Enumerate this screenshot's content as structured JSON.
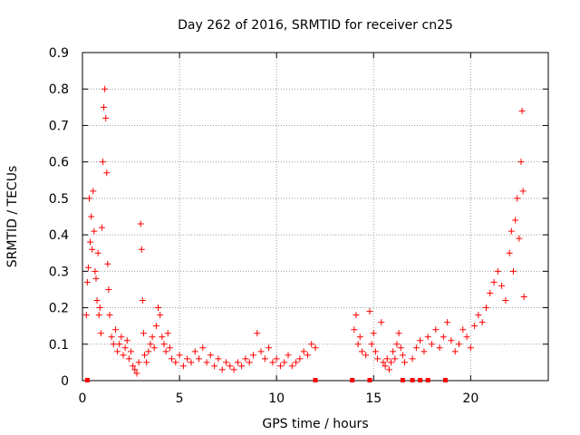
{
  "chart_data": {
    "type": "scatter",
    "title": "Day 262 of 2016, SRMTID for receiver cn25",
    "xlabel": "GPS time / hours",
    "ylabel": "SRMTID / TECUs",
    "xlim": [
      0,
      24
    ],
    "ylim": [
      0,
      0.9
    ],
    "xticks": [
      "0",
      "5",
      "10",
      "15",
      "20"
    ],
    "xtick_values": [
      0,
      5,
      10,
      15,
      20
    ],
    "yticks": [
      "0",
      "0.1",
      "0.2",
      "0.3",
      "0.4",
      "0.5",
      "0.6",
      "0.7",
      "0.8",
      "0.9"
    ],
    "ytick_values": [
      0,
      0.1,
      0.2,
      0.3,
      0.4,
      0.5,
      0.6,
      0.7,
      0.8,
      0.9
    ],
    "grid": true,
    "legend": "none",
    "marker": "+",
    "color": "#ff0000",
    "series": [
      {
        "values": [
          [
            0.2,
            0.18
          ],
          [
            0.25,
            0.27
          ],
          [
            0.3,
            0.31
          ],
          [
            0.35,
            0.5
          ],
          [
            0.4,
            0.38
          ],
          [
            0.45,
            0.45
          ],
          [
            0.5,
            0.36
          ],
          [
            0.55,
            0.52
          ],
          [
            0.6,
            0.41
          ],
          [
            0.65,
            0.3
          ],
          [
            0.7,
            0.28
          ],
          [
            0.75,
            0.22
          ],
          [
            0.8,
            0.35
          ],
          [
            0.85,
            0.18
          ],
          [
            0.9,
            0.2
          ],
          [
            0.95,
            0.13
          ],
          [
            1.0,
            0.42
          ],
          [
            1.05,
            0.6
          ],
          [
            1.1,
            0.75
          ],
          [
            1.15,
            0.8
          ],
          [
            1.2,
            0.72
          ],
          [
            1.25,
            0.57
          ],
          [
            1.3,
            0.32
          ],
          [
            1.35,
            0.25
          ],
          [
            1.4,
            0.18
          ],
          [
            1.5,
            0.12
          ],
          [
            1.6,
            0.1
          ],
          [
            1.7,
            0.14
          ],
          [
            1.8,
            0.08
          ],
          [
            1.9,
            0.1
          ],
          [
            2.0,
            0.12
          ],
          [
            2.1,
            0.07
          ],
          [
            2.2,
            0.09
          ],
          [
            2.3,
            0.11
          ],
          [
            2.4,
            0.06
          ],
          [
            2.5,
            0.08
          ],
          [
            2.6,
            0.04
          ],
          [
            2.7,
            0.03
          ],
          [
            2.8,
            0.02
          ],
          [
            2.9,
            0.05
          ],
          [
            3.0,
            0.43
          ],
          [
            3.05,
            0.36
          ],
          [
            3.1,
            0.22
          ],
          [
            3.15,
            0.13
          ],
          [
            3.2,
            0.07
          ],
          [
            3.3,
            0.05
          ],
          [
            3.4,
            0.08
          ],
          [
            3.5,
            0.1
          ],
          [
            3.6,
            0.12
          ],
          [
            3.7,
            0.09
          ],
          [
            3.8,
            0.15
          ],
          [
            3.9,
            0.2
          ],
          [
            4.0,
            0.18
          ],
          [
            4.1,
            0.12
          ],
          [
            4.2,
            0.1
          ],
          [
            4.3,
            0.08
          ],
          [
            4.4,
            0.13
          ],
          [
            4.5,
            0.09
          ],
          [
            4.6,
            0.06
          ],
          [
            4.8,
            0.05
          ],
          [
            5.0,
            0.07
          ],
          [
            5.2,
            0.04
          ],
          [
            5.4,
            0.06
          ],
          [
            5.6,
            0.05
          ],
          [
            5.8,
            0.08
          ],
          [
            6.0,
            0.06
          ],
          [
            6.2,
            0.09
          ],
          [
            6.4,
            0.05
          ],
          [
            6.6,
            0.07
          ],
          [
            6.8,
            0.04
          ],
          [
            7.0,
            0.06
          ],
          [
            7.2,
            0.03
          ],
          [
            7.4,
            0.05
          ],
          [
            7.6,
            0.04
          ],
          [
            7.8,
            0.03
          ],
          [
            8.0,
            0.05
          ],
          [
            8.2,
            0.04
          ],
          [
            8.4,
            0.06
          ],
          [
            8.6,
            0.05
          ],
          [
            8.8,
            0.07
          ],
          [
            9.0,
            0.13
          ],
          [
            9.2,
            0.08
          ],
          [
            9.4,
            0.06
          ],
          [
            9.6,
            0.09
          ],
          [
            9.8,
            0.05
          ],
          [
            10.0,
            0.06
          ],
          [
            10.2,
            0.04
          ],
          [
            10.4,
            0.05
          ],
          [
            10.6,
            0.07
          ],
          [
            10.8,
            0.04
          ],
          [
            11.0,
            0.05
          ],
          [
            11.2,
            0.06
          ],
          [
            11.4,
            0.08
          ],
          [
            11.6,
            0.07
          ],
          [
            11.8,
            0.1
          ],
          [
            12.0,
            0.09
          ],
          [
            14.0,
            0.14
          ],
          [
            14.1,
            0.18
          ],
          [
            14.2,
            0.1
          ],
          [
            14.3,
            0.12
          ],
          [
            14.4,
            0.08
          ],
          [
            14.6,
            0.07
          ],
          [
            14.8,
            0.19
          ],
          [
            14.9,
            0.1
          ],
          [
            15.0,
            0.13
          ],
          [
            15.1,
            0.08
          ],
          [
            15.2,
            0.06
          ],
          [
            15.4,
            0.16
          ],
          [
            15.5,
            0.05
          ],
          [
            15.6,
            0.04
          ],
          [
            15.7,
            0.06
          ],
          [
            15.8,
            0.03
          ],
          [
            15.9,
            0.05
          ],
          [
            16.0,
            0.08
          ],
          [
            16.1,
            0.06
          ],
          [
            16.2,
            0.1
          ],
          [
            16.3,
            0.13
          ],
          [
            16.4,
            0.09
          ],
          [
            16.5,
            0.07
          ],
          [
            16.6,
            0.05
          ],
          [
            17.0,
            0.06
          ],
          [
            17.2,
            0.09
          ],
          [
            17.4,
            0.11
          ],
          [
            17.6,
            0.08
          ],
          [
            17.8,
            0.12
          ],
          [
            18.0,
            0.1
          ],
          [
            18.2,
            0.14
          ],
          [
            18.4,
            0.09
          ],
          [
            18.6,
            0.12
          ],
          [
            18.8,
            0.16
          ],
          [
            19.0,
            0.11
          ],
          [
            19.2,
            0.08
          ],
          [
            19.4,
            0.1
          ],
          [
            19.6,
            0.14
          ],
          [
            19.8,
            0.12
          ],
          [
            20.0,
            0.09
          ],
          [
            20.2,
            0.15
          ],
          [
            20.4,
            0.18
          ],
          [
            20.6,
            0.16
          ],
          [
            20.8,
            0.2
          ],
          [
            21.0,
            0.24
          ],
          [
            21.2,
            0.27
          ],
          [
            21.4,
            0.3
          ],
          [
            21.6,
            0.26
          ],
          [
            21.8,
            0.22
          ],
          [
            22.0,
            0.35
          ],
          [
            22.1,
            0.41
          ],
          [
            22.2,
            0.3
          ],
          [
            22.3,
            0.44
          ],
          [
            22.4,
            0.5
          ],
          [
            22.5,
            0.39
          ],
          [
            22.6,
            0.6
          ],
          [
            22.65,
            0.74
          ],
          [
            22.7,
            0.52
          ],
          [
            22.75,
            0.23
          ]
        ]
      }
    ],
    "zero_line_markers": [
      0.25,
      12.0,
      13.9,
      14.8,
      16.5,
      17.0,
      17.4,
      17.8,
      18.7
    ]
  }
}
